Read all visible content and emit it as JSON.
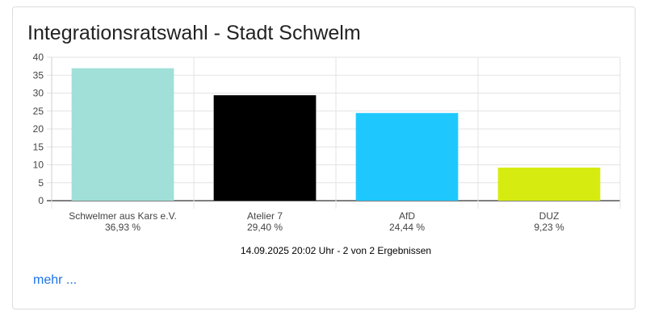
{
  "title": "Integrationsratswahl - Stadt Schwelm",
  "status": "14.09.2025 20:02 Uhr - 2 von 2 Ergebnissen",
  "more_link": "mehr ...",
  "chart_data": {
    "type": "bar",
    "categories": [
      "Schwelmer aus Kars e.V.",
      "Atelier 7",
      "AfD",
      "DUZ"
    ],
    "values": [
      36.93,
      29.4,
      24.44,
      9.23
    ],
    "value_labels": [
      "36,93 %",
      "29,40 %",
      "24,44 %",
      "9,23 %"
    ],
    "colors": [
      "#a0e0d8",
      "#000000",
      "#1ec8ff",
      "#d6ec10"
    ],
    "ylim": [
      0,
      40
    ],
    "yticks": [
      0,
      5,
      10,
      15,
      20,
      25,
      30,
      35,
      40
    ],
    "grid": true
  }
}
